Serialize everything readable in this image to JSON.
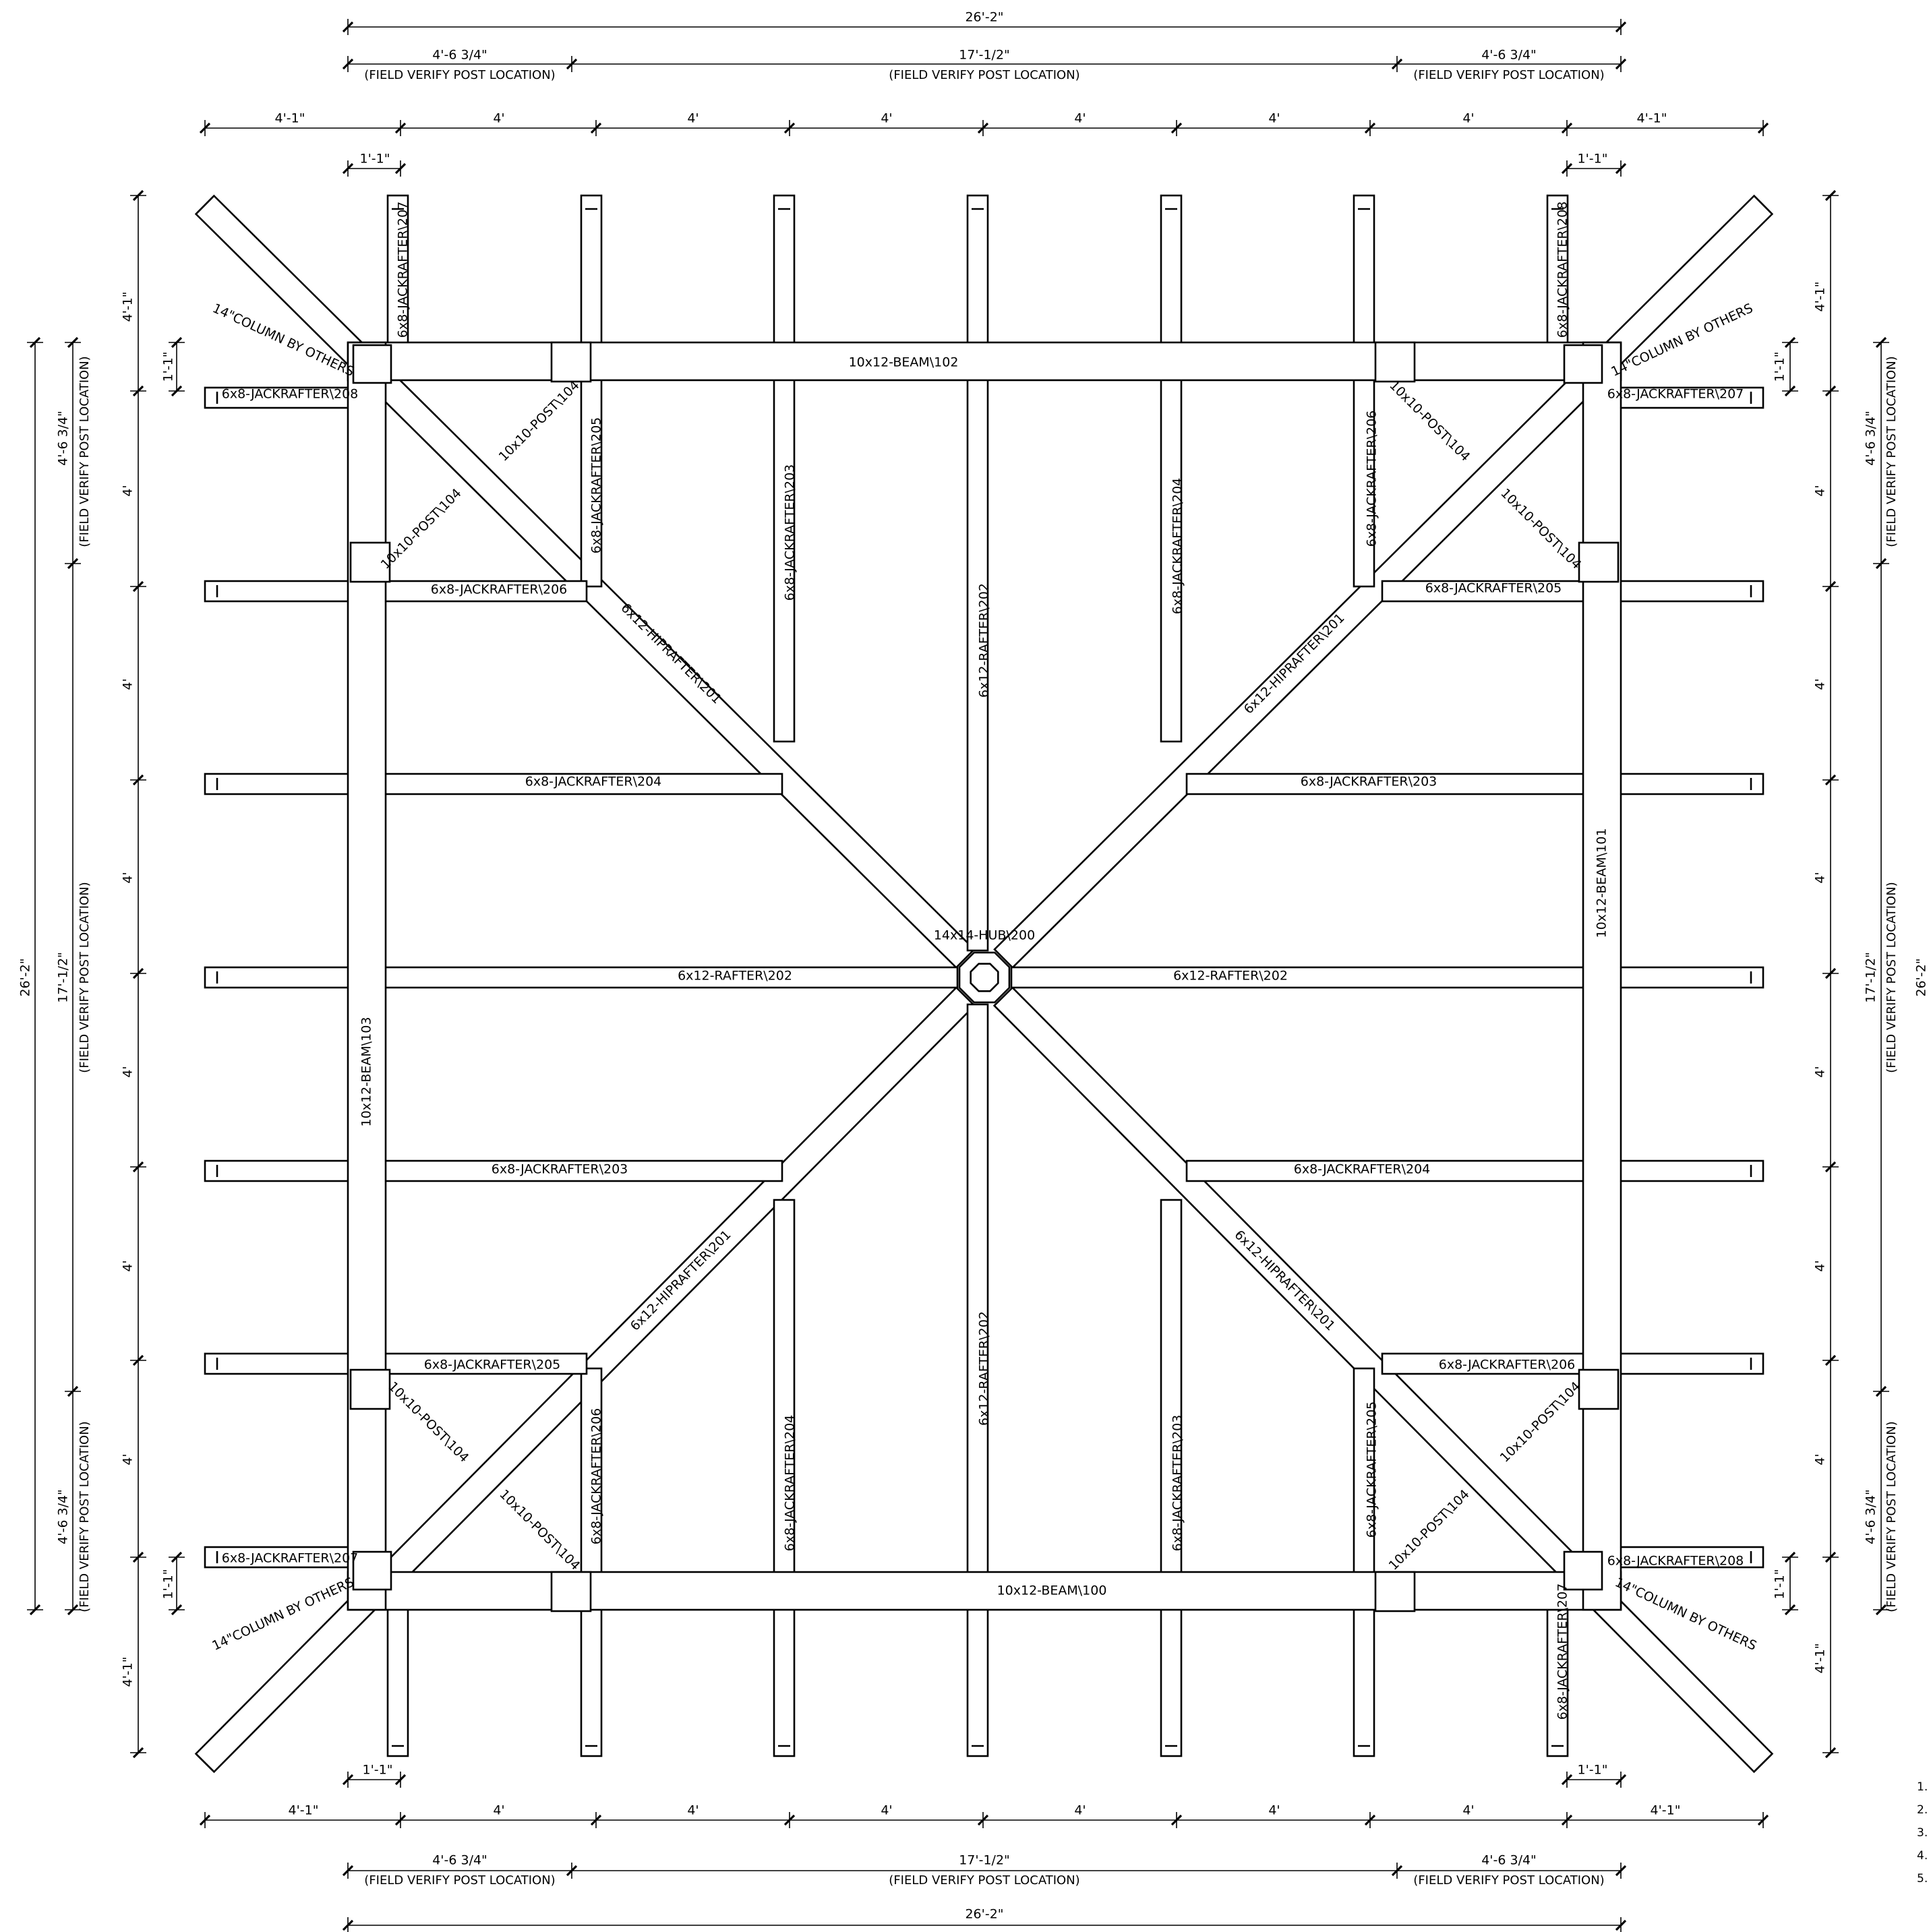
{
  "plan": {
    "overall": "26'-2\"",
    "end_bay": "4'-6 3/4\"",
    "mid_bay": "17'-1/2\"",
    "field_verify": "(FIELD VERIFY POST LOCATION)",
    "overhang": "4'-1\"",
    "spacing": "4'",
    "offset": "1'-1\"",
    "column": "14\"COLUMN BY OTHERS",
    "hub": "14x14-HUB\\200",
    "beam_100": "10x12-BEAM\\100",
    "beam_101": "10x12-BEAM\\101",
    "beam_102": "10x12-BEAM\\102",
    "beam_103": "10x12-BEAM\\103",
    "post": "10x10-POST\\104",
    "hip": "6x12-HIPRAFTER\\201",
    "rafter": "6x12-RAFTER\\202",
    "jr203": "6x8-JACKRAFTER\\203",
    "jr204": "6x8-JACKRAFTER\\204",
    "jr205": "6x8-JACKRAFTER\\205",
    "jr206": "6x8-JACKRAFTER\\206",
    "jr207": "6x8-JACKRAFTER\\207",
    "jr208": "6x8-JACKRAFTER\\208",
    "notes": [
      "1.",
      "2.",
      "3.",
      "4.",
      "5."
    ]
  },
  "colors": {
    "line": "#000000",
    "column_fill": "#c8c8c8",
    "post_fill": "#000000",
    "background": "#ffffff"
  }
}
